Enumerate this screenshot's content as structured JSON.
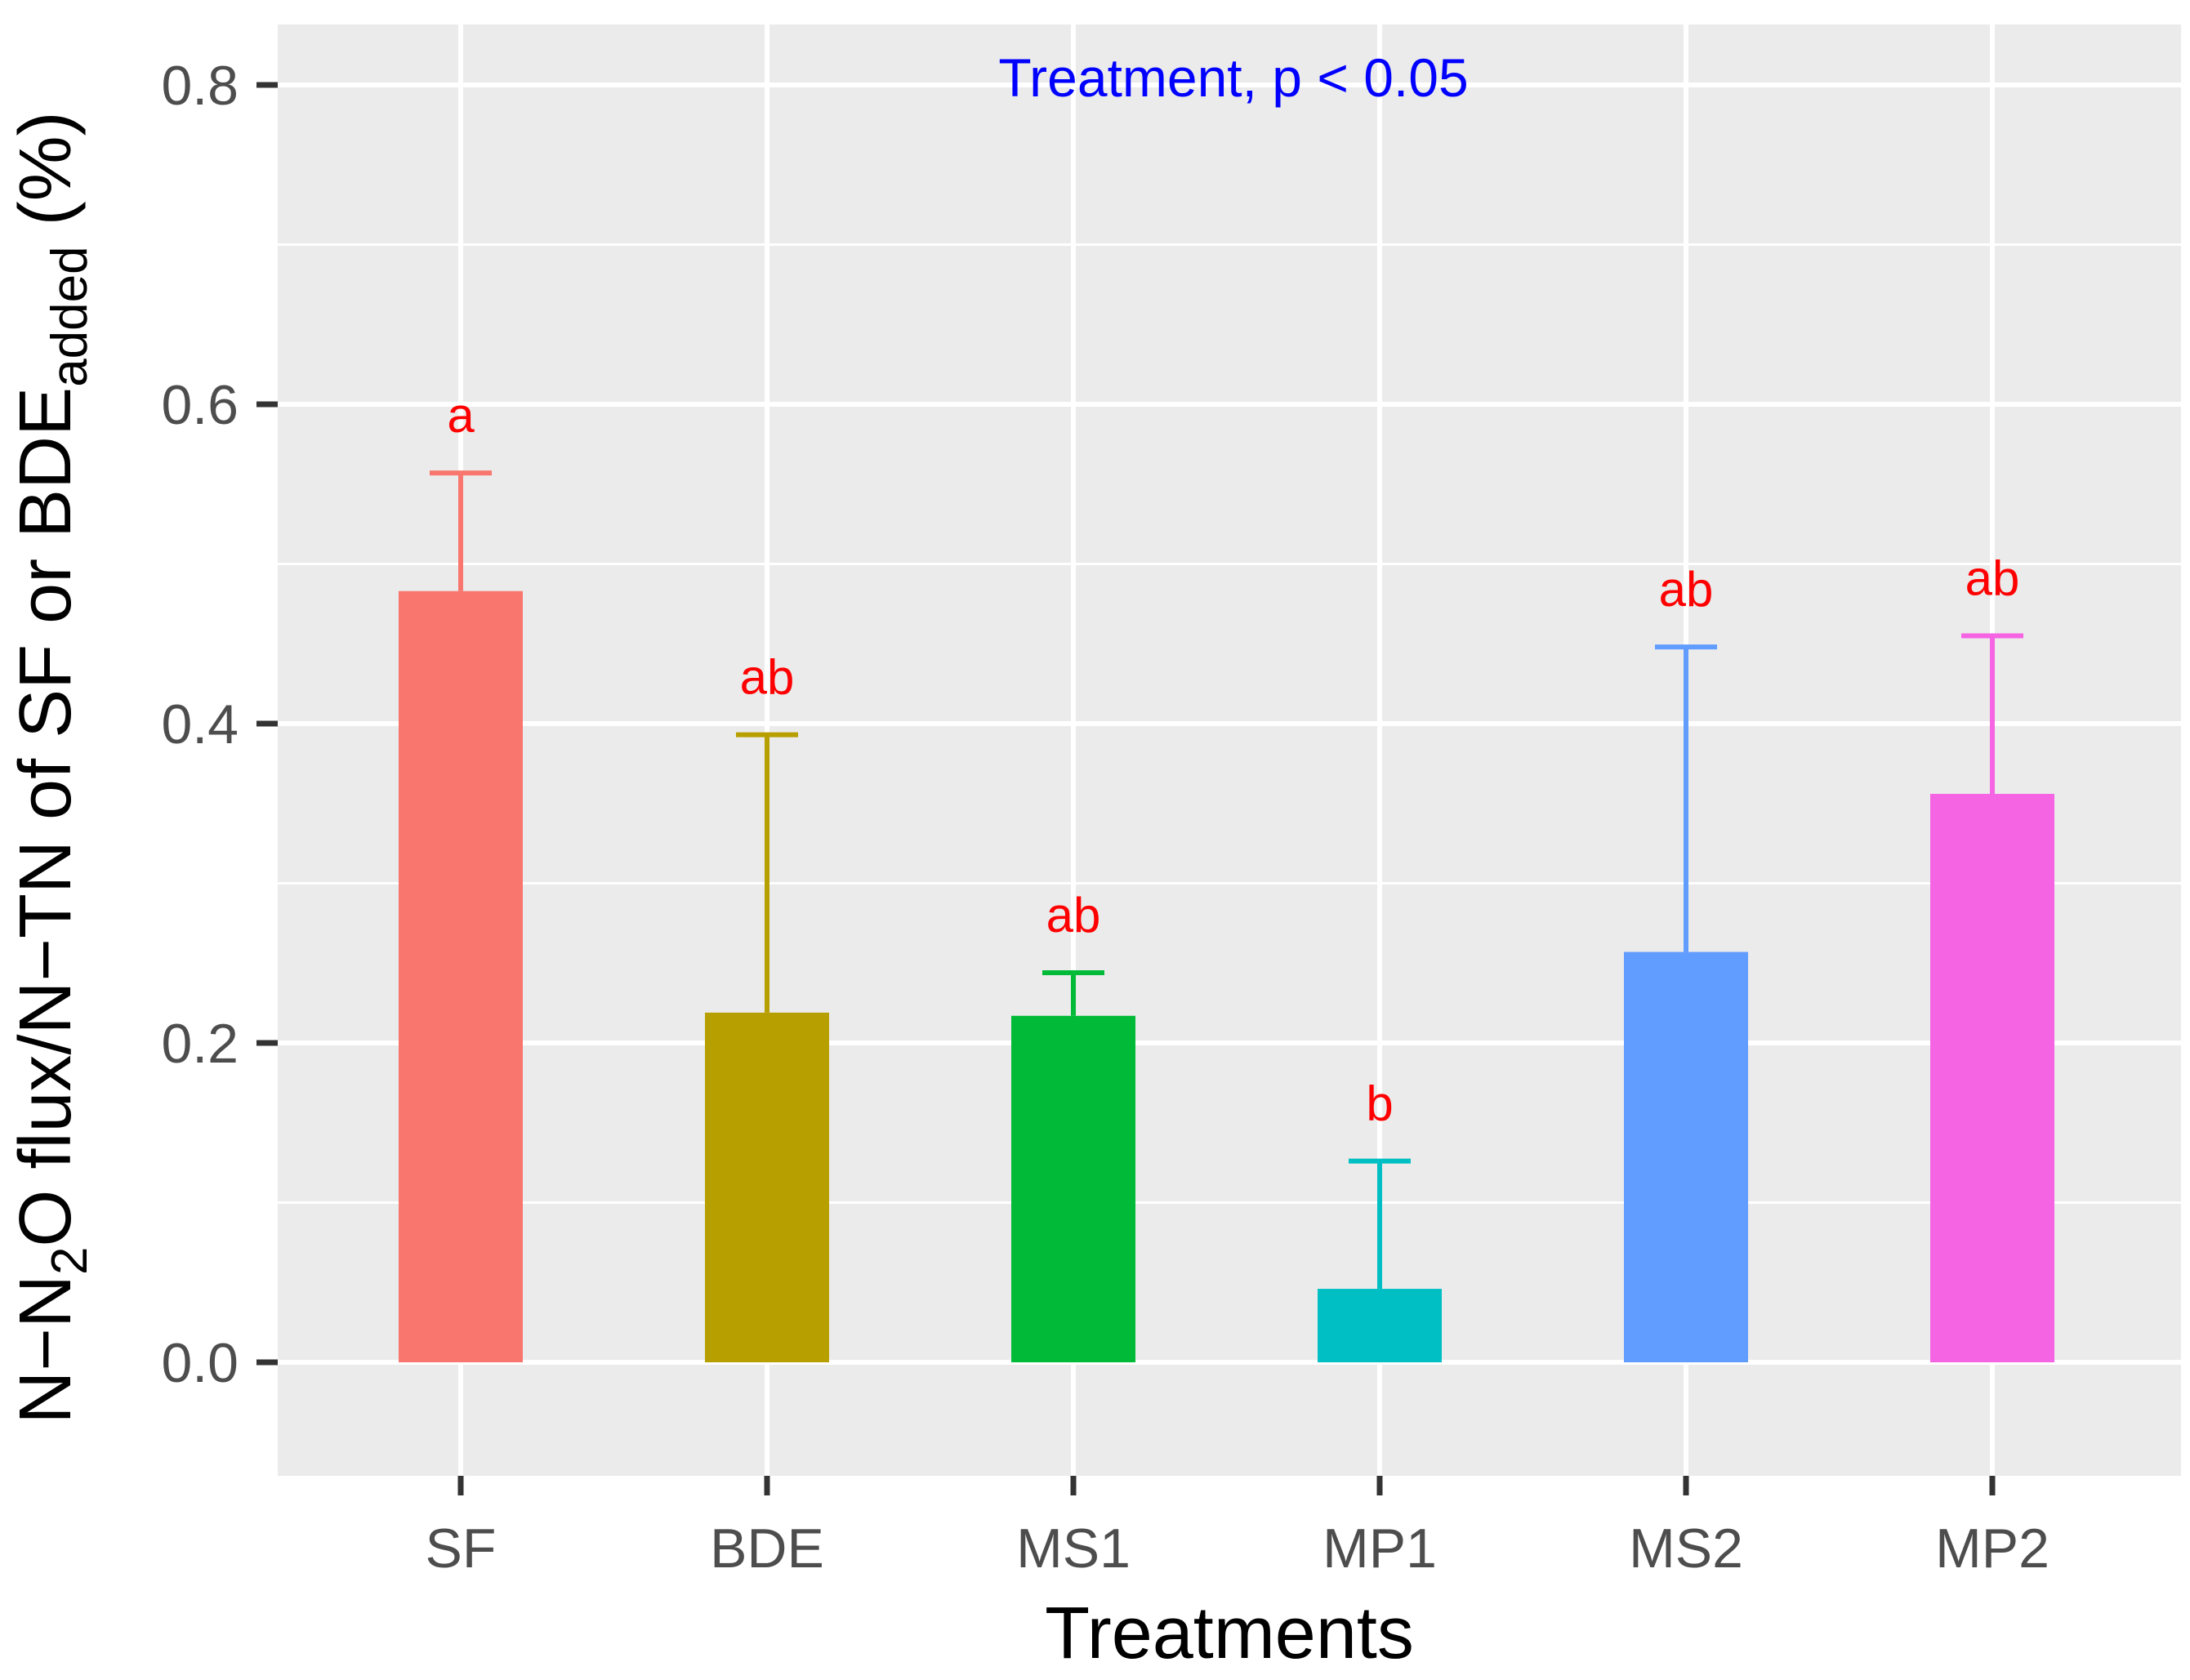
{
  "chart_data": {
    "type": "bar",
    "title": "",
    "xlabel": "Treatments",
    "ylabel": {
      "prefix": "N−N",
      "sub1": "2",
      "mid": "O flux/N−TN of SF or BDE",
      "sub2": "added",
      "suffix": " (%)"
    },
    "categories": [
      "SF",
      "BDE",
      "MS1",
      "MP1",
      "MS2",
      "MP2"
    ],
    "values": [
      0.483,
      0.219,
      0.217,
      0.046,
      0.257,
      0.356
    ],
    "error_upper": [
      0.557,
      0.393,
      0.244,
      0.126,
      0.448,
      0.455
    ],
    "significance_letters": [
      "a",
      "ab",
      "ab",
      "b",
      "ab",
      "ab"
    ],
    "colors": [
      "#F8766D",
      "#B79F00",
      "#00BA38",
      "#00BFC4",
      "#619CFF",
      "#F564E3"
    ],
    "ylim": [
      -0.075,
      0.84
    ],
    "yticks": [
      0.0,
      0.2,
      0.4,
      0.6,
      0.8
    ],
    "ytick_labels": [
      "0.0",
      "0.2",
      "0.4",
      "0.6",
      "0.8"
    ],
    "annotation": "Treatment, p < 0.05",
    "annotation_color": "#0000FF",
    "letter_color": "#FF0000",
    "panel_background": "#EBEBEB",
    "grid": true
  }
}
